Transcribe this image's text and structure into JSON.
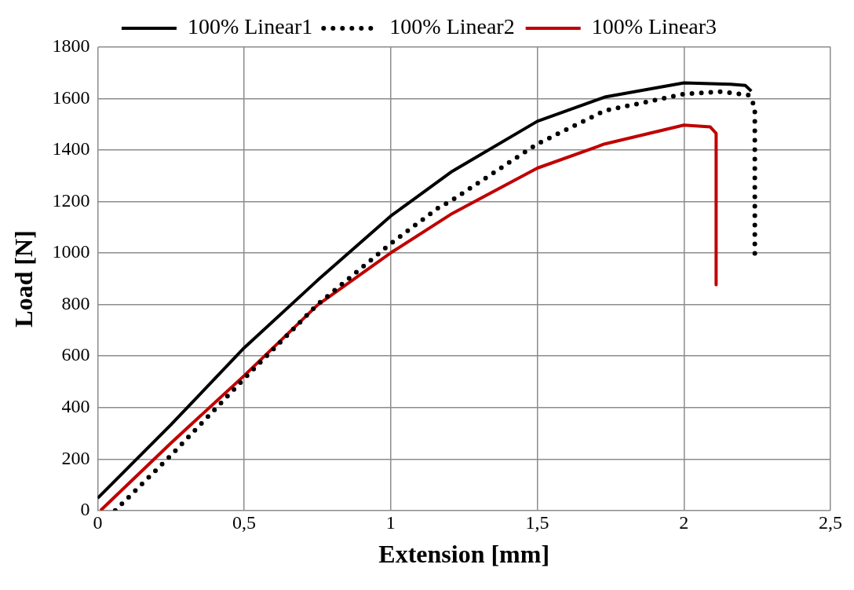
{
  "chart_data": {
    "type": "line",
    "xlabel": "Extension [mm]",
    "ylabel": "Load [N]",
    "xlim": [
      0,
      2.5
    ],
    "xticks": [
      0,
      {
        "value": 0.5,
        "label": "0,5"
      },
      1,
      {
        "value": 1.5,
        "label": "1,5"
      },
      2,
      {
        "value": 2.5,
        "label": "2,5"
      }
    ],
    "ylim": [
      0,
      1800
    ],
    "yticks": [
      0,
      200,
      400,
      600,
      800,
      1000,
      1200,
      1400,
      1600,
      1800
    ],
    "grid": true,
    "legend": "top",
    "marker": "none",
    "series": [
      {
        "name": "100% Linear1",
        "color": "#000000",
        "line_style": "solid",
        "x": [
          0,
          0.25,
          0.5,
          0.75,
          1,
          1.21,
          1.5,
          1.73,
          2,
          2.16,
          2.21,
          2.23
        ],
        "values": [
          48,
          333,
          632,
          894,
          1144,
          1318,
          1512,
          1606,
          1661,
          1656,
          1651,
          1629
        ]
      },
      {
        "name": "100% Linear2",
        "color": "#000000",
        "line_style": "dotted",
        "x": [
          0.06,
          0.25,
          0.5,
          0.75,
          1,
          1.16,
          1.21,
          1.5,
          1.73,
          2,
          2.125,
          2.22,
          2.242,
          2.242
        ],
        "values": [
          0,
          214,
          512,
          800,
          1037,
          1174,
          1206,
          1424,
          1553,
          1618,
          1627,
          1614,
          1570,
          995
        ]
      },
      {
        "name": "100% Linear3",
        "color": "#c00000",
        "line_style": "solid",
        "x": [
          0.01,
          0.25,
          0.5,
          0.75,
          1,
          1.21,
          1.5,
          1.73,
          2,
          2.09,
          2.11,
          2.11
        ],
        "values": [
          0,
          262,
          524,
          798,
          1001,
          1154,
          1330,
          1424,
          1497,
          1490,
          1465,
          877
        ]
      }
    ]
  }
}
